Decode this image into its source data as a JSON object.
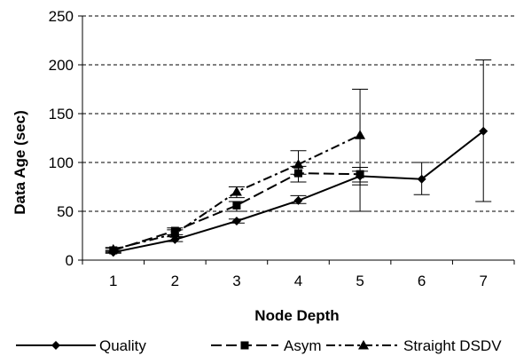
{
  "chart_data": {
    "type": "line",
    "title": "",
    "xlabel": "Node Depth",
    "ylabel": "Data Age (sec)",
    "xlim": [
      0.5,
      7.5
    ],
    "ylim": [
      0,
      250
    ],
    "x_ticks": [
      1,
      2,
      3,
      4,
      5,
      6,
      7
    ],
    "y_ticks": [
      0,
      50,
      100,
      150,
      200,
      250
    ],
    "grid": "horizontal-dashed",
    "legend_position": "bottom",
    "series": [
      {
        "name": "Quality",
        "line_style": "solid",
        "marker": "diamond",
        "x": [
          1,
          2,
          3,
          4,
          5,
          6,
          7
        ],
        "y": [
          8,
          21,
          40,
          61,
          86,
          83,
          132
        ],
        "err_low": [
          7,
          19,
          38,
          58,
          77,
          67,
          60
        ],
        "err_high": [
          10,
          24,
          42,
          66,
          91,
          100,
          205
        ]
      },
      {
        "name": "Asym",
        "line_style": "dashed",
        "marker": "square",
        "x": [
          1,
          2,
          3,
          4,
          5
        ],
        "y": [
          10,
          30,
          56,
          89,
          88
        ],
        "err_low": [
          8,
          26,
          50,
          80,
          80
        ],
        "err_high": [
          12,
          33,
          60,
          96,
          95
        ]
      },
      {
        "name": "Straight DSDV",
        "line_style": "dashdot",
        "marker": "triangle",
        "x": [
          1,
          2,
          3,
          4,
          5
        ],
        "y": [
          11,
          27,
          70,
          98,
          128
        ],
        "err_low": [
          9,
          24,
          64,
          88,
          50
        ],
        "err_high": [
          13,
          31,
          75,
          112,
          175
        ]
      }
    ]
  }
}
